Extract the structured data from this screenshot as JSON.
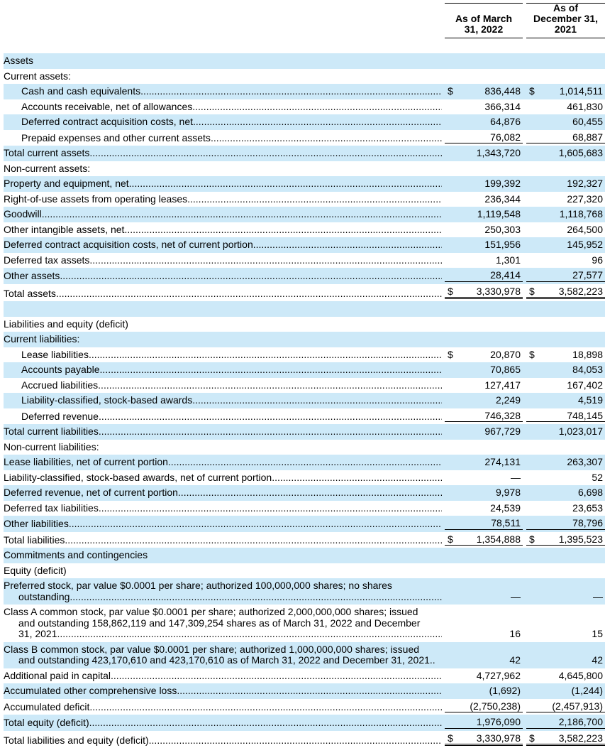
{
  "header": {
    "col1_lines": [
      "As of March",
      "31, 2022"
    ],
    "col2_lines": [
      "As of",
      "December 31,",
      "2021"
    ]
  },
  "style": {
    "row_highlight_color": "#cde9f8",
    "text_color": "#000000"
  },
  "rows": [
    {
      "label": "Assets"
    },
    {
      "label": "Current assets:"
    },
    {
      "label": "Cash and cash equivalents",
      "cur1": "$",
      "v1": "836,448",
      "cur2": "$",
      "v2": "1,014,511"
    },
    {
      "label": "Accounts receivable, net of allowances",
      "v1": "366,314",
      "v2": "461,830"
    },
    {
      "label": "Deferred contract acquisition costs, net",
      "v1": "64,876",
      "v2": "60,455"
    },
    {
      "label": "Prepaid expenses and other current assets",
      "v1": "76,082",
      "v2": "68,887"
    },
    {
      "label": "Total current assets",
      "v1": "1,343,720",
      "v2": "1,605,683"
    },
    {
      "label": "Non-current assets:"
    },
    {
      "label": "Property and equipment, net",
      "v1": "199,392",
      "v2": "192,327"
    },
    {
      "label": "Right-of-use assets from operating leases",
      "v1": "236,344",
      "v2": "227,320"
    },
    {
      "label": "Goodwill",
      "v1": "1,119,548",
      "v2": "1,118,768"
    },
    {
      "label": "Other intangible assets, net",
      "v1": "250,303",
      "v2": "264,500"
    },
    {
      "label": "Deferred contract acquisition costs, net of current portion",
      "v1": "151,956",
      "v2": "145,952"
    },
    {
      "label": "Deferred tax assets",
      "v1": "1,301",
      "v2": "96"
    },
    {
      "label": "Other assets",
      "v1": "28,414",
      "v2": "27,577"
    },
    {
      "label": "Total assets",
      "cur1": "$",
      "v1": "3,330,978",
      "cur2": "$",
      "v2": "3,582,223"
    },
    {
      "label": ""
    },
    {
      "label": "Liabilities and equity (deficit)"
    },
    {
      "label": "Current liabilities:"
    },
    {
      "label": "Lease liabilities",
      "cur1": "$",
      "v1": "20,870",
      "cur2": "$",
      "v2": "18,898"
    },
    {
      "label": "Accounts payable",
      "v1": "70,865",
      "v2": "84,053"
    },
    {
      "label": "Accrued liabilities",
      "v1": "127,417",
      "v2": "167,402"
    },
    {
      "label": "Liability-classified, stock-based awards",
      "v1": "2,249",
      "v2": "4,519"
    },
    {
      "label": "Deferred revenue",
      "v1": "746,328",
      "v2": "748,145"
    },
    {
      "label": "Total current liabilities",
      "v1": "967,729",
      "v2": "1,023,017"
    },
    {
      "label": "Non-current liabilities:"
    },
    {
      "label": "Lease liabilities, net of current portion",
      "v1": "274,131",
      "v2": "263,307"
    },
    {
      "label": "Liability-classified, stock-based awards, net of current portion",
      "v1": "—",
      "v2": "52"
    },
    {
      "label": "Deferred revenue, net of current portion",
      "v1": "9,978",
      "v2": "6,698"
    },
    {
      "label": "Deferred tax liabilities",
      "v1": "24,539",
      "v2": "23,653"
    },
    {
      "label": "Other liabilities",
      "v1": "78,511",
      "v2": "78,796"
    },
    {
      "label": "Total liabilities",
      "cur1": "$",
      "v1": "1,354,888",
      "cur2": "$",
      "v2": "1,395,523"
    },
    {
      "label": "Commitments and contingencies"
    },
    {
      "label": "Equity (deficit)"
    },
    {
      "label_lines": [
        "Preferred stock, par value $0.0001 per share; authorized 100,000,000 shares; no shares",
        "outstanding"
      ],
      "v1": "—",
      "v2": "—"
    },
    {
      "label_lines": [
        "Class A common stock, par value $0.0001 per share; authorized 2,000,000,000 shares; issued",
        "and outstanding 158,862,119 and 147,309,254 shares as of March 31, 2022 and December",
        "31, 2021"
      ],
      "v1": "16",
      "v2": "15"
    },
    {
      "label_lines": [
        "Class B common stock, par value $0.0001 per share; authorized 1,000,000,000 shares; issued",
        "and outstanding 423,170,610 and 423,170,610 as of March 31, 2022 and December 31, 2021.."
      ],
      "v1": "42",
      "v2": "42"
    },
    {
      "label": "Additional paid in capital",
      "v1": "4,727,962",
      "v2": "4,645,800"
    },
    {
      "label": "Accumulated other comprehensive loss",
      "v1": "(1,692)",
      "v2": "(1,244)"
    },
    {
      "label": "Accumulated deficit",
      "v1": "(2,750,238)",
      "v2": "(2,457,913)"
    },
    {
      "label": "Total equity (deficit)",
      "v1": "1,976,090",
      "v2": "2,186,700"
    },
    {
      "label": "Total liabilities and equity (deficit)",
      "cur1": "$",
      "v1": "3,330,978",
      "cur2": "$",
      "v2": "3,582,223"
    }
  ]
}
